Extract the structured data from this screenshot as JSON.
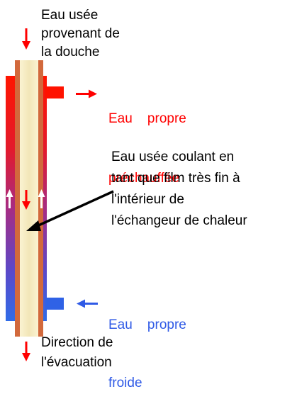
{
  "labels": {
    "wastewater_in": [
      "Eau usée",
      "provenant de",
      "la douche"
    ],
    "preheated_water": [
      "Eau    propre",
      "préchauffée"
    ],
    "film_annotation": [
      "Eau usée coulant en",
      "tant que film très fin à",
      "l'intérieur de",
      "l'échangeur de chaleur"
    ],
    "cold_water": [
      "Eau    propre",
      "froide"
    ],
    "drain_direction": [
      "Direction de",
      "l'évacuation"
    ]
  },
  "colors": {
    "hot": "#ff0000",
    "cold": "#2f5ae6",
    "arrow_red": "#ff0000",
    "arrow_blue": "#2f5ae6",
    "inner_pipe_wall": "#d2693c",
    "inner_pipe_fill": "#f7efc7",
    "text_default": "#000000"
  },
  "icons": {
    "flow_arrows": "arrow",
    "pointer": "arrow"
  }
}
